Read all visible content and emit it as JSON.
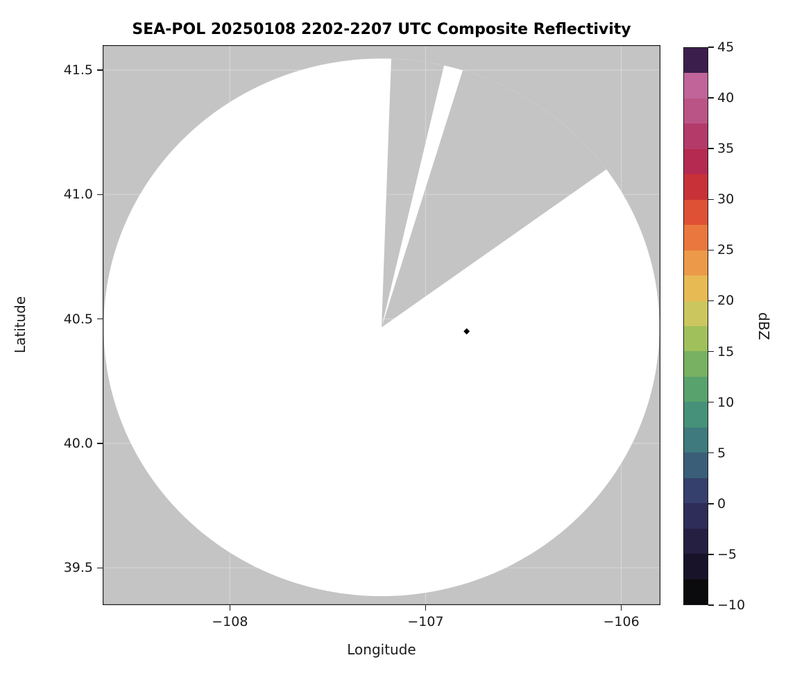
{
  "chart_data": {
    "type": "heatmap",
    "subtype": "radar-ppi-composite-reflectivity",
    "title": "SEA-POL 20250108 2202-2207 UTC Composite Reflectivity",
    "xlabel": "Longitude",
    "ylabel": "Latitude",
    "xlim": [
      -108.65,
      -105.8
    ],
    "ylim": [
      39.35,
      41.6
    ],
    "xticks": {
      "values": [
        -108,
        -107,
        -106
      ],
      "labels": [
        "−108",
        "−107",
        "−106"
      ]
    },
    "yticks": {
      "values": [
        39.5,
        40.0,
        40.5,
        41.0,
        41.5
      ],
      "labels": [
        "39.5",
        "40.0",
        "40.5",
        "41.0",
        "41.5"
      ]
    },
    "grid": {
      "visible": true,
      "color": "#ffffff",
      "opacity": 0.3
    },
    "nodata_color": "#c4c4c4",
    "scanned_color": "#ffffff",
    "radar_coverage": {
      "center_lon": -107.225,
      "center_lat": 40.466,
      "radius_lon_deg": 1.42,
      "radius_lat_deg": 1.08,
      "blocked_sectors_azimuth_deg": [
        [
          2,
          13
        ],
        [
          17,
          54
        ]
      ]
    },
    "echoes": [
      {
        "lon": -106.79,
        "lat": 40.45,
        "marker": "diamond",
        "color": "#000000",
        "approx_dbz": -10
      }
    ],
    "colorbar": {
      "label": "dBZ",
      "min": -10,
      "max": 45,
      "tick_step": 5,
      "tick_labels": [
        "45",
        "40",
        "35",
        "30",
        "25",
        "20",
        "15",
        "10",
        "5",
        "0",
        "−5",
        "−10"
      ],
      "band_step": 2.5,
      "band_colors_bottom_to_top": [
        "#0b0b0d",
        "#191329",
        "#251f41",
        "#2e2c58",
        "#35406c",
        "#3a5e78",
        "#3e7a7e",
        "#45917a",
        "#58a26e",
        "#77b161",
        "#a0c05c",
        "#cbc75e",
        "#e8ba54",
        "#ec9a49",
        "#e9773e",
        "#df5134",
        "#c93138",
        "#b52a50",
        "#b43a69",
        "#bb5486",
        "#c0649a",
        "#3c1e4d"
      ]
    }
  }
}
